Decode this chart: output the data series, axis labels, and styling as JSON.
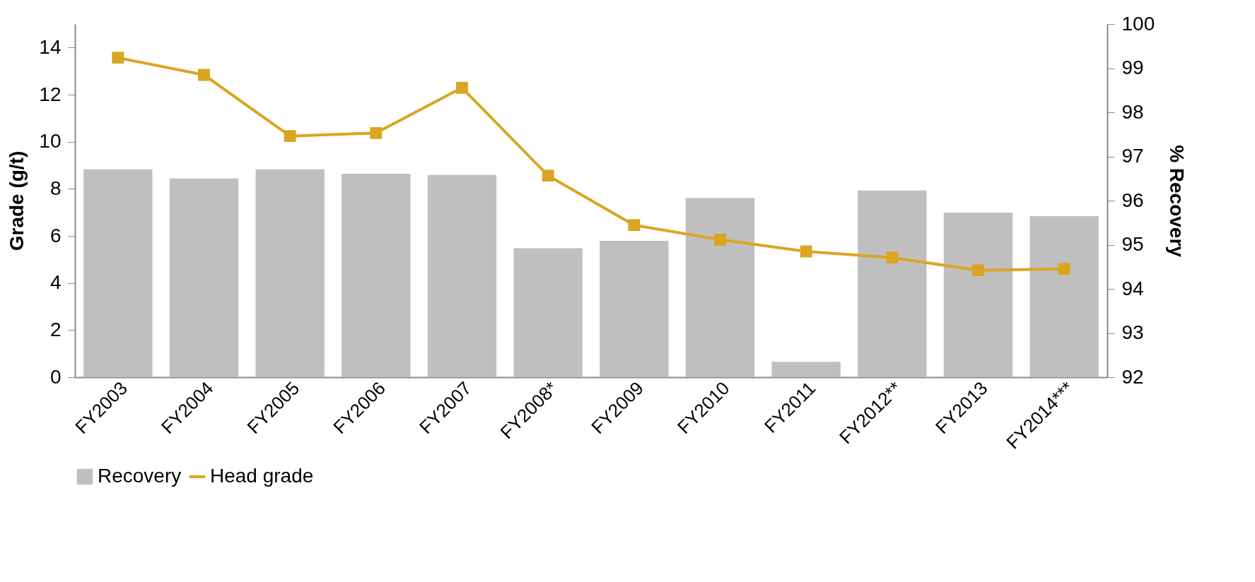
{
  "chart_data": {
    "type": "bar",
    "categories": [
      "FY2003",
      "FY2004",
      "FY2005",
      "FY2006",
      "FY2007",
      "FY2008*",
      "FY2009",
      "FY2010",
      "FY2011",
      "FY2012**",
      "FY2013",
      "FY2014***"
    ],
    "series": [
      {
        "name": "Recovery",
        "axis": "y2",
        "color": "#bfbfbf",
        "values": [
          96.71,
          96.5,
          96.71,
          96.61,
          96.58,
          94.92,
          95.09,
          96.06,
          92.35,
          96.23,
          95.73,
          95.65
        ]
      },
      {
        "name": "Head grade",
        "type": "line",
        "color": "#daa520",
        "marker": "square",
        "values": [
          13.57,
          12.84,
          10.24,
          10.37,
          12.29,
          8.56,
          6.46,
          5.84,
          5.34,
          5.08,
          4.54,
          4.6
        ]
      }
    ],
    "ylabel": "Grade (g/t)",
    "y2label": "% Recovery",
    "ylim": [
      0,
      15
    ],
    "yticks": [
      0,
      2,
      4,
      6,
      8,
      10,
      12,
      14
    ],
    "y2lim": [
      92,
      100
    ],
    "y2ticks": [
      92,
      93,
      94,
      95,
      96,
      97,
      98,
      99,
      100
    ],
    "grid": false,
    "legend": "bottom"
  }
}
